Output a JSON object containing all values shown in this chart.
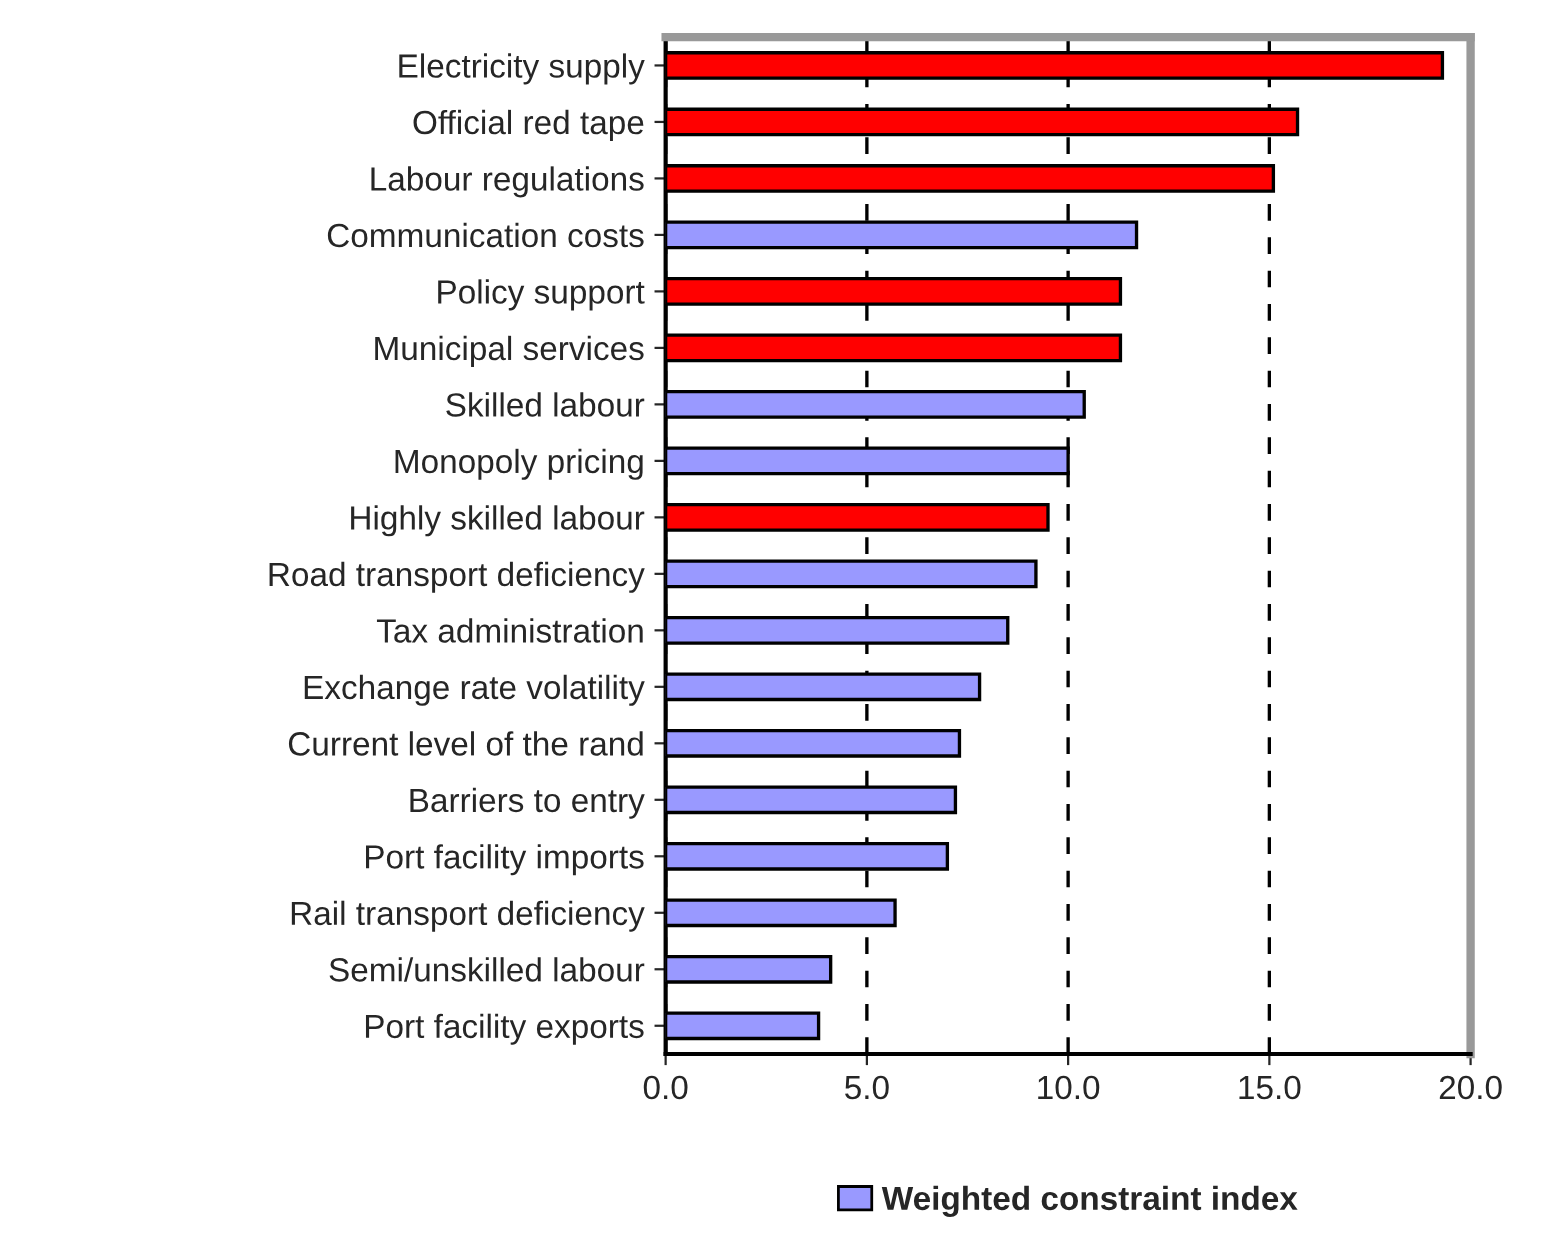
{
  "chart_data": {
    "type": "bar",
    "orientation": "horizontal",
    "categories": [
      "Electricity supply",
      "Official red tape",
      "Labour regulations",
      "Communication costs",
      "Policy support",
      "Municipal services",
      "Skilled labour",
      "Monopoly pricing",
      "Highly skilled labour",
      "Road transport deficiency",
      "Tax administration",
      "Exchange rate volatility",
      "Current level of the rand",
      "Barriers to entry",
      "Port facility imports",
      "Rail transport deficiency",
      "Semi/unskilled labour",
      "Port facility exports"
    ],
    "series": [
      {
        "name": "Weighted constraint index",
        "color": "#9999ff",
        "colors": [
          "#ff0000",
          "#ff0000",
          "#ff0000",
          "#9999ff",
          "#ff0000",
          "#ff0000",
          "#9999ff",
          "#9999ff",
          "#ff0000",
          "#9999ff",
          "#9999ff",
          "#9999ff",
          "#9999ff",
          "#9999ff",
          "#9999ff",
          "#9999ff",
          "#9999ff",
          "#9999ff"
        ],
        "values": [
          19.3,
          15.7,
          15.1,
          11.7,
          11.3,
          11.3,
          10.4,
          10.0,
          9.5,
          9.2,
          8.5,
          7.8,
          7.3,
          7.2,
          7.0,
          5.7,
          4.1,
          3.8
        ]
      }
    ],
    "xlim": [
      0,
      20
    ],
    "xticks": [
      {
        "value": 0,
        "label": "0.0"
      },
      {
        "value": 5,
        "label": "5.0"
      },
      {
        "value": 10,
        "label": "10.0"
      },
      {
        "value": 15,
        "label": "15.0"
      },
      {
        "value": 20,
        "label": "20.0"
      }
    ],
    "grid": "x",
    "legend": "bottom"
  }
}
